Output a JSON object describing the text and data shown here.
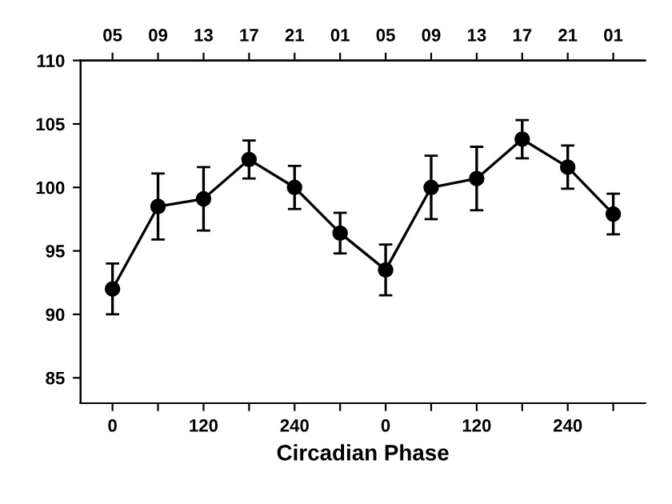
{
  "chart_data": {
    "type": "line",
    "xlabel": "Circadian Phase",
    "categories": [
      "0",
      null,
      "120",
      null,
      "240",
      null,
      "0",
      null,
      "120",
      null,
      "240",
      null
    ],
    "values": [
      92,
      98.5,
      99.1,
      102.2,
      100,
      96.4,
      93.5,
      100,
      100.7,
      103.8,
      101.6,
      97.9
    ],
    "errors": [
      2,
      2.6,
      2.5,
      1.5,
      1.7,
      1.6,
      2,
      2.5,
      2.5,
      1.5,
      1.7,
      1.6
    ],
    "color": "#000000",
    "marker": "circle",
    "line_style": "solid",
    "ylim": [
      83,
      110
    ],
    "yticks": [
      85,
      90,
      95,
      100,
      105,
      110
    ],
    "annotations": [
      "05",
      "09",
      "13",
      "17",
      "21",
      "01",
      "05",
      "09",
      "13",
      "17",
      "21",
      "01"
    ],
    "grid": false
  }
}
